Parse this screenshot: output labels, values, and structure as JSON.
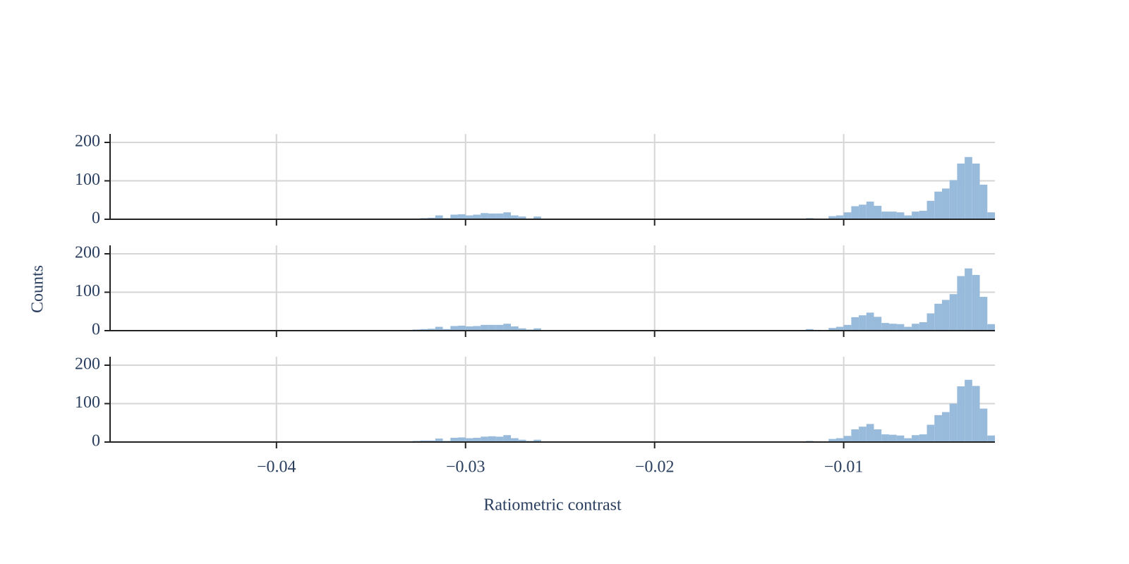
{
  "chart_data": [
    {
      "type": "histogram",
      "color": "#99bbdb",
      "bins": [
        -0.0488,
        -0.0484,
        -0.048,
        -0.0476,
        -0.0472,
        -0.0468,
        -0.0464,
        -0.046,
        -0.0456,
        -0.0452,
        -0.0448,
        -0.0444,
        -0.044,
        -0.0436,
        -0.0432,
        -0.0428,
        -0.0424,
        -0.042,
        -0.0416,
        -0.0412,
        -0.0408,
        -0.0404,
        -0.04,
        -0.0396,
        -0.0392,
        -0.0388,
        -0.0384,
        -0.038,
        -0.0376,
        -0.0372,
        -0.0368,
        -0.0364,
        -0.036,
        -0.0356,
        -0.0352,
        -0.0348,
        -0.0344,
        -0.034,
        -0.0336,
        -0.0332,
        -0.0328,
        -0.0324,
        -0.032,
        -0.0316,
        -0.0312,
        -0.0308,
        -0.0304,
        -0.03,
        -0.0296,
        -0.0292,
        -0.0288,
        -0.0284,
        -0.028,
        -0.0276,
        -0.0272,
        -0.0268,
        -0.0264,
        -0.026,
        -0.0256,
        -0.0252,
        -0.0248,
        -0.0244,
        -0.024,
        -0.0236,
        -0.0232,
        -0.0228,
        -0.0224,
        -0.022,
        -0.0216,
        -0.0212,
        -0.0208,
        -0.0204,
        -0.02,
        -0.0196,
        -0.0192,
        -0.0188,
        -0.0184,
        -0.018,
        -0.0176,
        -0.0172,
        -0.0168,
        -0.0164,
        -0.016,
        -0.0156,
        -0.0152,
        -0.0148,
        -0.0144,
        -0.014,
        -0.0136,
        -0.0132,
        -0.0128,
        -0.0124,
        -0.012,
        -0.0116,
        -0.0112,
        -0.0108,
        -0.0104,
        -0.01,
        -0.0096,
        -0.0092,
        -0.0088,
        -0.0084,
        -0.008,
        -0.0076,
        -0.0072,
        -0.0068,
        -0.0064,
        -0.006,
        -0.0056,
        -0.0052,
        -0.0048,
        -0.0044,
        -0.004,
        -0.0036,
        -0.0032,
        -0.0028,
        -0.0024,
        -0.002
      ],
      "values": [
        0,
        0,
        0,
        0,
        0,
        0,
        0,
        0,
        0,
        0,
        0,
        0,
        0,
        0,
        0,
        0,
        0,
        0,
        0,
        0,
        0,
        0,
        0,
        0,
        0,
        0,
        0,
        0,
        0,
        0,
        0,
        0,
        0,
        0,
        0,
        0,
        1,
        0,
        0,
        1,
        2,
        3,
        4,
        10,
        3,
        12,
        13,
        10,
        12,
        16,
        15,
        15,
        18,
        10,
        7,
        2,
        7,
        0,
        0,
        0,
        0,
        0,
        1,
        0,
        0,
        0,
        0,
        0,
        0,
        1,
        0,
        0,
        0,
        0,
        0,
        0,
        0,
        0,
        0,
        0,
        1,
        0,
        0,
        1,
        0,
        0,
        0,
        0,
        1,
        0,
        0,
        0,
        3,
        2,
        0,
        8,
        10,
        18,
        34,
        38,
        46,
        35,
        20,
        20,
        18,
        10,
        20,
        22,
        48,
        72,
        80,
        102,
        145,
        162,
        145,
        90,
        18
      ],
      "xlim": [
        -0.0488,
        -0.002
      ],
      "ylim": [
        0,
        211
      ],
      "xticks": [
        -0.04,
        -0.03,
        -0.02,
        -0.01
      ],
      "yticks": [
        0,
        100,
        200
      ],
      "grid": true
    },
    {
      "type": "histogram",
      "color": "#99bbdb",
      "ylabel": "Counts",
      "bins": [
        -0.0488,
        -0.0484,
        -0.048,
        -0.0476,
        -0.0472,
        -0.0468,
        -0.0464,
        -0.046,
        -0.0456,
        -0.0452,
        -0.0448,
        -0.0444,
        -0.044,
        -0.0436,
        -0.0432,
        -0.0428,
        -0.0424,
        -0.042,
        -0.0416,
        -0.0412,
        -0.0408,
        -0.0404,
        -0.04,
        -0.0396,
        -0.0392,
        -0.0388,
        -0.0384,
        -0.038,
        -0.0376,
        -0.0372,
        -0.0368,
        -0.0364,
        -0.036,
        -0.0356,
        -0.0352,
        -0.0348,
        -0.0344,
        -0.034,
        -0.0336,
        -0.0332,
        -0.0328,
        -0.0324,
        -0.032,
        -0.0316,
        -0.0312,
        -0.0308,
        -0.0304,
        -0.03,
        -0.0296,
        -0.0292,
        -0.0288,
        -0.0284,
        -0.028,
        -0.0276,
        -0.0272,
        -0.0268,
        -0.0264,
        -0.026,
        -0.0256,
        -0.0252,
        -0.0248,
        -0.0244,
        -0.024,
        -0.0236,
        -0.0232,
        -0.0228,
        -0.0224,
        -0.022,
        -0.0216,
        -0.0212,
        -0.0208,
        -0.0204,
        -0.02,
        -0.0196,
        -0.0192,
        -0.0188,
        -0.0184,
        -0.018,
        -0.0176,
        -0.0172,
        -0.0168,
        -0.0164,
        -0.016,
        -0.0156,
        -0.0152,
        -0.0148,
        -0.0144,
        -0.014,
        -0.0136,
        -0.0132,
        -0.0128,
        -0.0124,
        -0.012,
        -0.0116,
        -0.0112,
        -0.0108,
        -0.0104,
        -0.01,
        -0.0096,
        -0.0092,
        -0.0088,
        -0.0084,
        -0.008,
        -0.0076,
        -0.0072,
        -0.0068,
        -0.0064,
        -0.006,
        -0.0056,
        -0.0052,
        -0.0048,
        -0.0044,
        -0.004,
        -0.0036,
        -0.0032,
        -0.0028,
        -0.0024,
        -0.002
      ],
      "values": [
        0,
        0,
        0,
        0,
        0,
        0,
        0,
        0,
        0,
        0,
        0,
        0,
        0,
        0,
        0,
        1,
        0,
        0,
        0,
        1,
        0,
        0,
        0,
        0,
        0,
        1,
        0,
        0,
        0,
        1,
        0,
        0,
        0,
        0,
        0,
        0,
        1,
        0,
        0,
        1,
        3,
        4,
        5,
        10,
        4,
        12,
        13,
        11,
        12,
        15,
        15,
        15,
        18,
        11,
        6,
        3,
        6,
        1,
        1,
        1,
        1,
        1,
        0,
        1,
        0,
        1,
        0,
        0,
        1,
        1,
        0,
        0,
        1,
        0,
        0,
        1,
        0,
        1,
        0,
        1,
        0,
        1,
        1,
        0,
        1,
        0,
        0,
        1,
        0,
        1,
        0,
        0,
        4,
        2,
        0,
        7,
        10,
        15,
        35,
        40,
        47,
        36,
        20,
        18,
        17,
        10,
        18,
        22,
        45,
        70,
        80,
        95,
        142,
        162,
        145,
        88,
        17
      ],
      "xlim": [
        -0.0488,
        -0.002
      ],
      "ylim": [
        0,
        211
      ],
      "xticks": [
        -0.04,
        -0.03,
        -0.02,
        -0.01
      ],
      "yticks": [
        0,
        100,
        200
      ],
      "grid": true
    },
    {
      "type": "histogram",
      "color": "#99bbdb",
      "xlabel": "Ratiometric contrast",
      "bins": [
        -0.0488,
        -0.0484,
        -0.048,
        -0.0476,
        -0.0472,
        -0.0468,
        -0.0464,
        -0.046,
        -0.0456,
        -0.0452,
        -0.0448,
        -0.0444,
        -0.044,
        -0.0436,
        -0.0432,
        -0.0428,
        -0.0424,
        -0.042,
        -0.0416,
        -0.0412,
        -0.0408,
        -0.0404,
        -0.04,
        -0.0396,
        -0.0392,
        -0.0388,
        -0.0384,
        -0.038,
        -0.0376,
        -0.0372,
        -0.0368,
        -0.0364,
        -0.036,
        -0.0356,
        -0.0352,
        -0.0348,
        -0.0344,
        -0.034,
        -0.0336,
        -0.0332,
        -0.0328,
        -0.0324,
        -0.032,
        -0.0316,
        -0.0312,
        -0.0308,
        -0.0304,
        -0.03,
        -0.0296,
        -0.0292,
        -0.0288,
        -0.0284,
        -0.028,
        -0.0276,
        -0.0272,
        -0.0268,
        -0.0264,
        -0.026,
        -0.0256,
        -0.0252,
        -0.0248,
        -0.0244,
        -0.024,
        -0.0236,
        -0.0232,
        -0.0228,
        -0.0224,
        -0.022,
        -0.0216,
        -0.0212,
        -0.0208,
        -0.0204,
        -0.02,
        -0.0196,
        -0.0192,
        -0.0188,
        -0.0184,
        -0.018,
        -0.0176,
        -0.0172,
        -0.0168,
        -0.0164,
        -0.016,
        -0.0156,
        -0.0152,
        -0.0148,
        -0.0144,
        -0.014,
        -0.0136,
        -0.0132,
        -0.0128,
        -0.0124,
        -0.012,
        -0.0116,
        -0.0112,
        -0.0108,
        -0.0104,
        -0.01,
        -0.0096,
        -0.0092,
        -0.0088,
        -0.0084,
        -0.008,
        -0.0076,
        -0.0072,
        -0.0068,
        -0.0064,
        -0.006,
        -0.0056,
        -0.0052,
        -0.0048,
        -0.0044,
        -0.004,
        -0.0036,
        -0.0032,
        -0.0028,
        -0.0024,
        -0.002
      ],
      "values": [
        0,
        0,
        0,
        0,
        0,
        0,
        0,
        0,
        0,
        0,
        0,
        0,
        0,
        0,
        0,
        1,
        0,
        0,
        0,
        1,
        0,
        0,
        0,
        0,
        0,
        1,
        0,
        0,
        0,
        1,
        0,
        0,
        0,
        0,
        0,
        0,
        1,
        0,
        0,
        1,
        3,
        4,
        4,
        9,
        3,
        11,
        12,
        10,
        11,
        14,
        15,
        14,
        18,
        10,
        6,
        3,
        6,
        1,
        1,
        1,
        1,
        1,
        0,
        1,
        0,
        1,
        0,
        1,
        1,
        1,
        0,
        0,
        1,
        0,
        0,
        1,
        0,
        1,
        0,
        1,
        0,
        1,
        1,
        0,
        1,
        0,
        0,
        1,
        0,
        1,
        0,
        0,
        3,
        2,
        0,
        8,
        10,
        16,
        33,
        40,
        47,
        33,
        20,
        19,
        17,
        10,
        18,
        20,
        45,
        70,
        78,
        100,
        145,
        162,
        146,
        87,
        17
      ],
      "xlim": [
        -0.0488,
        -0.002
      ],
      "ylim": [
        0,
        211
      ],
      "xticks": [
        {
          "value": -0.04,
          "label": "−0.04"
        },
        {
          "value": -0.03,
          "label": "−0.03"
        },
        {
          "value": -0.02,
          "label": "−0.02"
        },
        {
          "value": -0.01,
          "label": "−0.01"
        }
      ],
      "yticks": [
        0,
        100,
        200
      ],
      "grid": true
    }
  ]
}
